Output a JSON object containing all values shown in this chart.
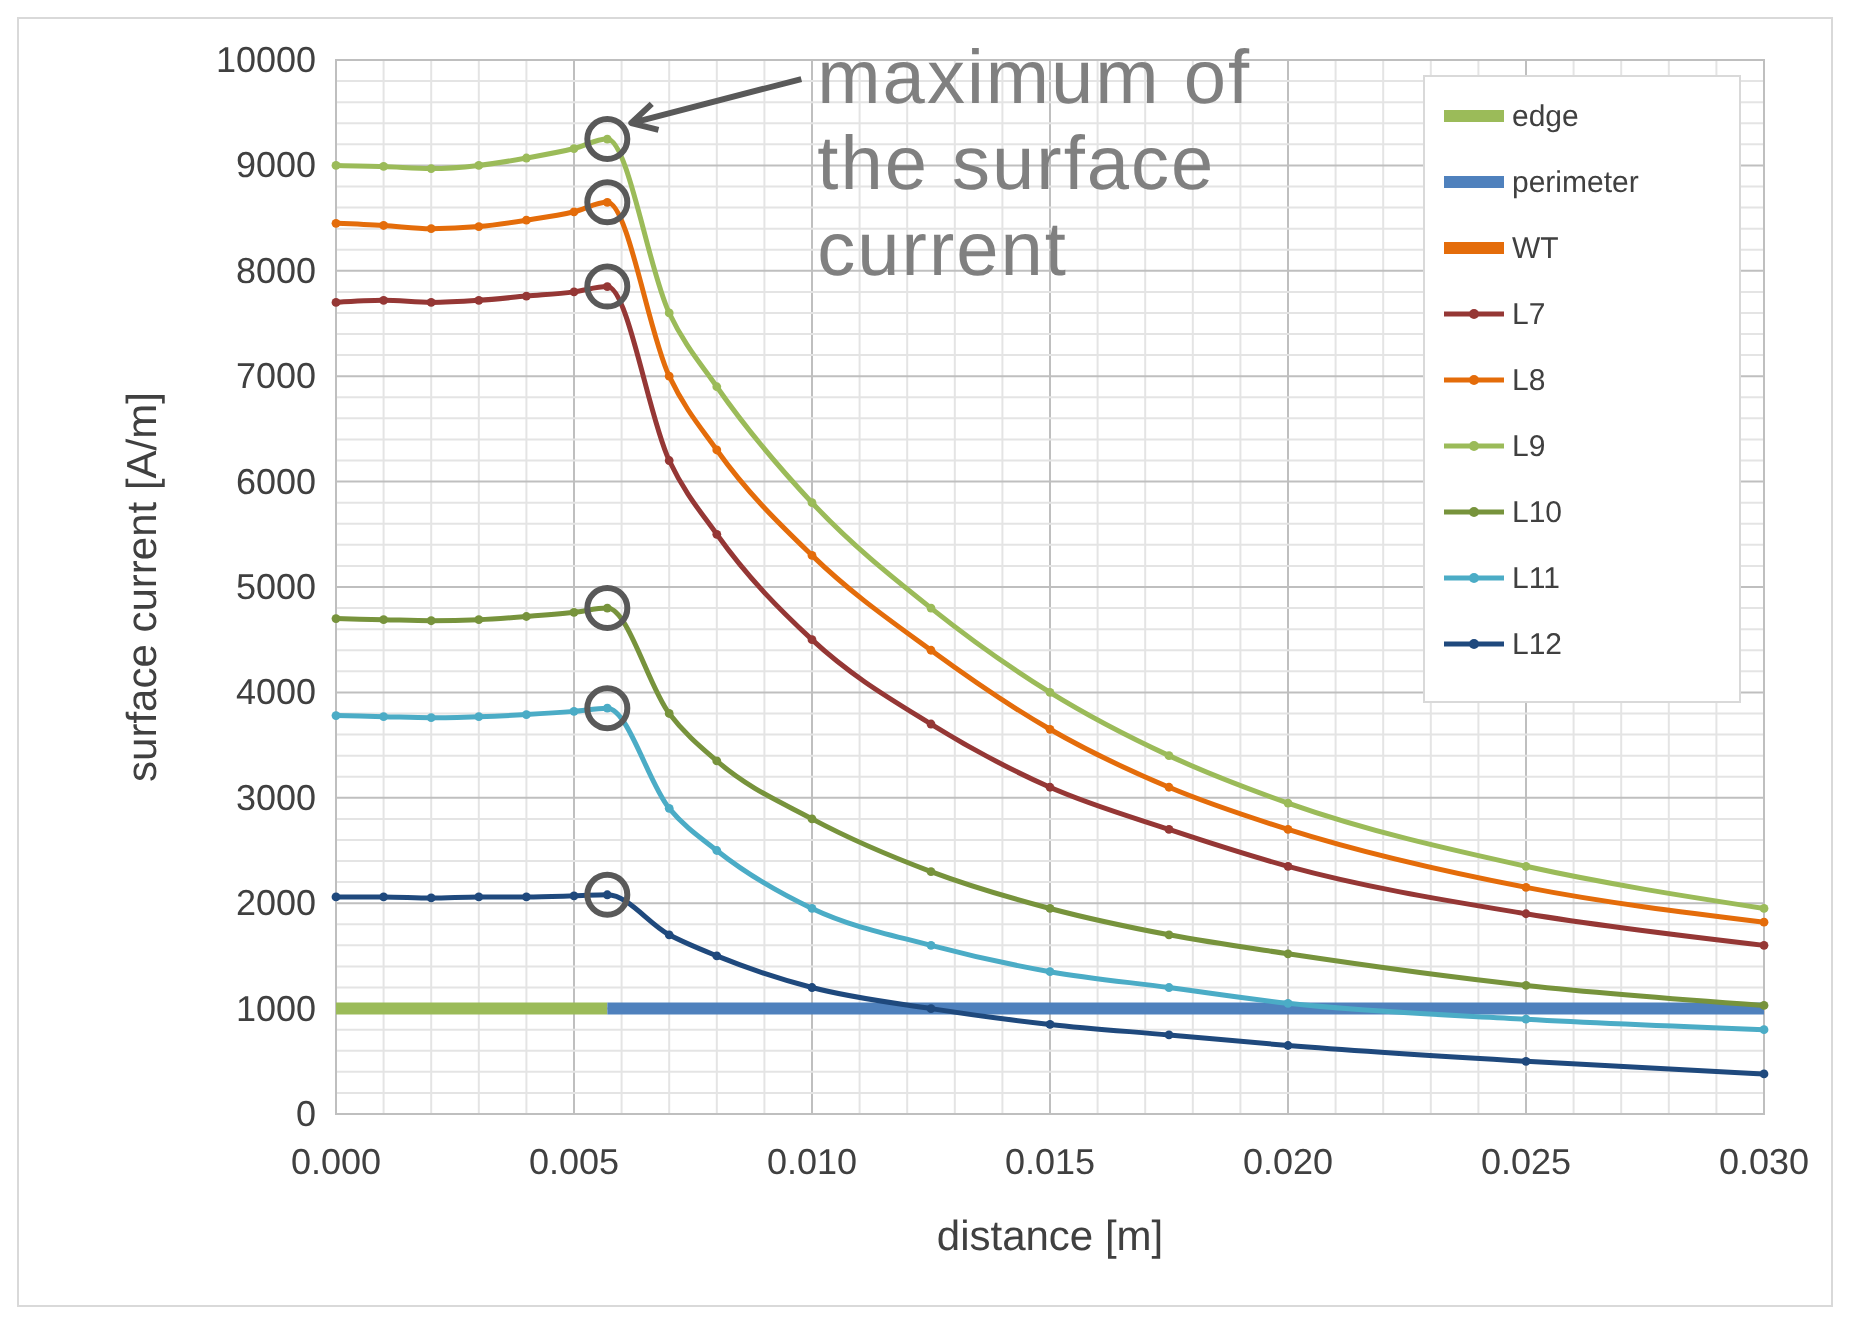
{
  "chart_data": {
    "type": "line",
    "xlabel": "distance [m]",
    "ylabel": "surface current [A/m]",
    "xlim": [
      0,
      0.03
    ],
    "xticks": [
      {
        "value": 0,
        "label": "0.000"
      },
      {
        "value": 0.005,
        "label": "0.005"
      },
      {
        "value": 0.01,
        "label": "0.010"
      },
      {
        "value": 0.015,
        "label": "0.015"
      },
      {
        "value": 0.02,
        "label": "0.020"
      },
      {
        "value": 0.025,
        "label": "0.025"
      },
      {
        "value": 0.03,
        "label": "0.030"
      }
    ],
    "ylim": [
      0,
      10000
    ],
    "yticks": [
      0,
      1000,
      2000,
      3000,
      4000,
      5000,
      6000,
      7000,
      8000,
      9000,
      10000
    ],
    "grid": true,
    "legend": "top right",
    "line_style": "solid",
    "annotations": [
      {
        "text": "maximum of the surface current",
        "x": 0.0057,
        "y": 9250
      }
    ],
    "x": [
      0,
      0.001,
      0.002,
      0.003,
      0.004,
      0.005,
      0.0057,
      0.007,
      0.008,
      0.01,
      0.0125,
      0.015,
      0.0175,
      0.02,
      0.025,
      0.03
    ],
    "series": [
      {
        "name": "edge",
        "color": "#9bbb59",
        "marker": "none",
        "x": [
          0,
          0.0057
        ],
        "values": [
          1000,
          1000
        ]
      },
      {
        "name": "perimeter",
        "color": "#4f81bd",
        "marker": "none",
        "x": [
          0.0057,
          0.03
        ],
        "values": [
          1000,
          1000
        ]
      },
      {
        "name": "WT",
        "color": "#e46c0a",
        "marker": "none",
        "values": [
          null,
          null,
          null,
          null,
          null,
          null,
          null,
          null,
          null,
          null,
          null,
          null,
          null,
          null,
          null,
          null
        ]
      },
      {
        "name": "L7",
        "color": "#953735",
        "marker": "circle",
        "values": [
          7700,
          7720,
          7700,
          7720,
          7760,
          7800,
          7850,
          6200,
          5500,
          4500,
          3700,
          3100,
          2700,
          2350,
          1900,
          1600
        ]
      },
      {
        "name": "L8",
        "color": "#e46c0a",
        "marker": "circle",
        "values": [
          8450,
          8430,
          8400,
          8420,
          8480,
          8560,
          8650,
          7000,
          6300,
          5300,
          4400,
          3650,
          3100,
          2700,
          2150,
          1820
        ]
      },
      {
        "name": "L9",
        "color": "#9bbb59",
        "marker": "circle",
        "values": [
          9000,
          8990,
          8970,
          9000,
          9070,
          9160,
          9250,
          7600,
          6900,
          5800,
          4800,
          4000,
          3400,
          2950,
          2350,
          1950
        ]
      },
      {
        "name": "L10",
        "color": "#77933c",
        "marker": "circle",
        "values": [
          4700,
          4690,
          4680,
          4690,
          4720,
          4760,
          4800,
          3800,
          3350,
          2800,
          2300,
          1950,
          1700,
          1520,
          1220,
          1030
        ]
      },
      {
        "name": "L11",
        "color": "#4bacc6",
        "marker": "circle",
        "values": [
          3780,
          3770,
          3760,
          3770,
          3790,
          3820,
          3850,
          2900,
          2500,
          1950,
          1600,
          1350,
          1200,
          1050,
          900,
          800
        ]
      },
      {
        "name": "L12",
        "color": "#1f497d",
        "marker": "circle",
        "values": [
          2060,
          2060,
          2050,
          2060,
          2060,
          2070,
          2080,
          1700,
          1500,
          1200,
          1000,
          850,
          750,
          650,
          500,
          380
        ]
      }
    ]
  }
}
